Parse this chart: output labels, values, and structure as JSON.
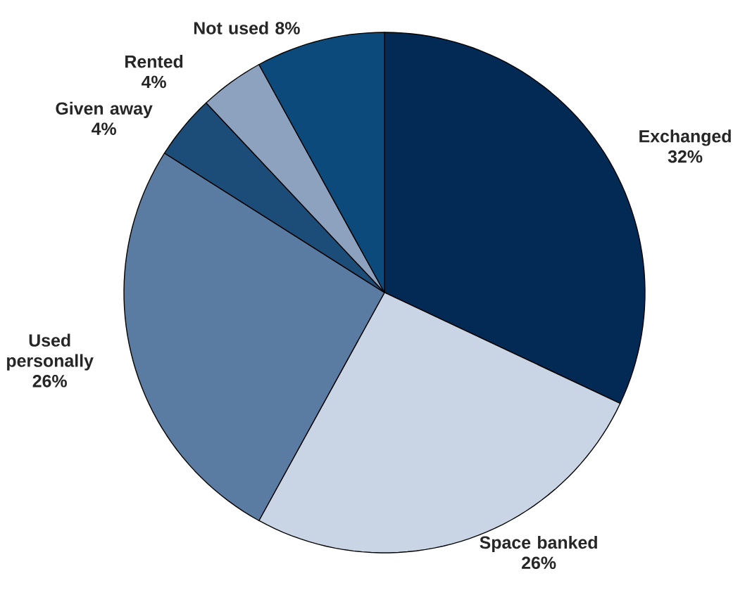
{
  "chart_data": {
    "type": "pie",
    "categories": [
      "Exchanged",
      "Space banked",
      "Used personally",
      "Given away",
      "Rented",
      "Not used"
    ],
    "values": [
      32,
      26,
      26,
      4,
      4,
      8
    ],
    "value_labels": [
      "32%",
      "26%",
      "26%",
      "4%",
      "4%",
      "8%"
    ],
    "colors": [
      "#022a55",
      "#c9d4e4",
      "#5a7ca2",
      "#1c4c78",
      "#8ca2bf",
      "#0c4a7c"
    ]
  }
}
